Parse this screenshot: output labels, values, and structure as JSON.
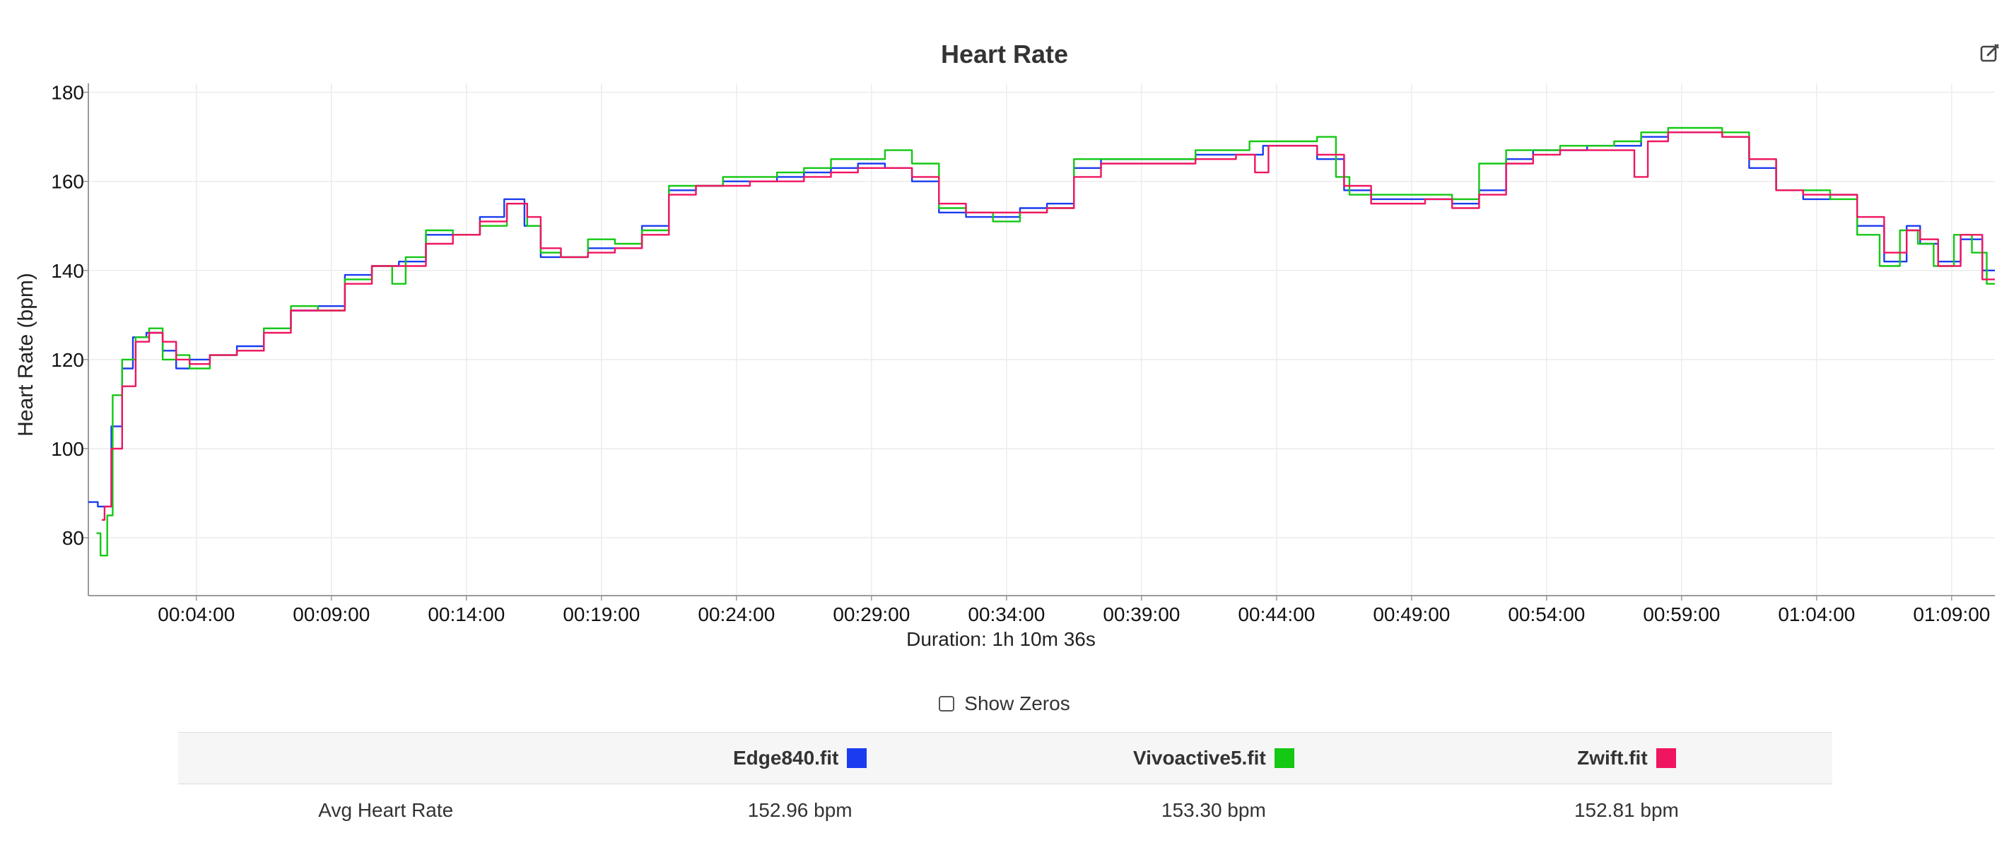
{
  "chart_data": {
    "type": "line",
    "title": "Heart Rate",
    "ylabel": "Heart Rate (bpm)",
    "xlabel": "Duration: 1h 10m 36s",
    "ylim": [
      67,
      182
    ],
    "xlim_seconds": [
      0,
      4236
    ],
    "yticks": [
      80,
      100,
      120,
      140,
      160,
      180
    ],
    "xticks": [
      "00:04:00",
      "00:09:00",
      "00:14:00",
      "00:19:00",
      "00:24:00",
      "00:29:00",
      "00:34:00",
      "00:39:00",
      "00:44:00",
      "00:49:00",
      "00:54:00",
      "00:59:00",
      "01:04:00",
      "01:09:00"
    ],
    "grid": true,
    "series": [
      {
        "name": "Edge840.fit",
        "color": "#1a3cf0",
        "points": [
          [
            "00:00:00",
            88
          ],
          [
            "00:00:42",
            87
          ],
          [
            "00:01:00",
            105
          ],
          [
            "00:01:30",
            118
          ],
          [
            "00:01:48",
            125
          ],
          [
            "00:02:30",
            126
          ],
          [
            "00:03:00",
            122
          ],
          [
            "00:03:30",
            118
          ],
          [
            "00:04:00",
            120
          ],
          [
            "00:05:00",
            121
          ],
          [
            "00:06:00",
            123
          ],
          [
            "00:07:00",
            127
          ],
          [
            "00:08:00",
            131
          ],
          [
            "00:09:00",
            132
          ],
          [
            "00:10:00",
            139
          ],
          [
            "00:11:00",
            141
          ],
          [
            "00:12:00",
            142
          ],
          [
            "00:13:00",
            148
          ],
          [
            "00:14:00",
            148
          ],
          [
            "00:15:00",
            152
          ],
          [
            "00:15:48",
            156
          ],
          [
            "00:16:30",
            150
          ],
          [
            "00:17:00",
            143
          ],
          [
            "00:18:00",
            143
          ],
          [
            "00:19:00",
            145
          ],
          [
            "00:20:00",
            145
          ],
          [
            "00:21:00",
            150
          ],
          [
            "00:22:00",
            158
          ],
          [
            "00:23:00",
            159
          ],
          [
            "00:24:00",
            160
          ],
          [
            "00:25:00",
            160
          ],
          [
            "00:26:00",
            161
          ],
          [
            "00:27:00",
            162
          ],
          [
            "00:28:00",
            163
          ],
          [
            "00:29:00",
            164
          ],
          [
            "00:30:00",
            163
          ],
          [
            "00:31:00",
            160
          ],
          [
            "00:32:00",
            153
          ],
          [
            "00:33:00",
            152
          ],
          [
            "00:34:00",
            152
          ],
          [
            "00:35:00",
            154
          ],
          [
            "00:36:00",
            155
          ],
          [
            "00:37:00",
            163
          ],
          [
            "00:38:00",
            165
          ],
          [
            "00:40:00",
            165
          ],
          [
            "00:42:00",
            166
          ],
          [
            "00:43:00",
            166
          ],
          [
            "00:44:00",
            168
          ],
          [
            "00:45:00",
            168
          ],
          [
            "00:46:00",
            165
          ],
          [
            "00:47:00",
            158
          ],
          [
            "00:48:00",
            156
          ],
          [
            "00:49:00",
            156
          ],
          [
            "00:50:00",
            156
          ],
          [
            "00:51:00",
            155
          ],
          [
            "00:52:00",
            158
          ],
          [
            "00:53:00",
            165
          ],
          [
            "00:54:00",
            167
          ],
          [
            "00:55:00",
            167
          ],
          [
            "00:56:00",
            168
          ],
          [
            "00:57:00",
            168
          ],
          [
            "00:58:00",
            170
          ],
          [
            "00:59:00",
            171
          ],
          [
            "01:00:00",
            171
          ],
          [
            "01:01:00",
            170
          ],
          [
            "01:02:00",
            163
          ],
          [
            "01:03:00",
            158
          ],
          [
            "01:04:00",
            156
          ],
          [
            "01:05:00",
            157
          ],
          [
            "01:06:00",
            150
          ],
          [
            "01:07:00",
            142
          ],
          [
            "01:07:40",
            150
          ],
          [
            "01:08:00",
            146
          ],
          [
            "01:09:00",
            142
          ],
          [
            "01:09:40",
            147
          ],
          [
            "01:10:36",
            140
          ]
        ]
      },
      {
        "name": "Vivoactive5.fit",
        "color": "#14c814",
        "points": [
          [
            "00:00:18",
            81
          ],
          [
            "00:00:36",
            76
          ],
          [
            "00:00:48",
            85
          ],
          [
            "00:01:00",
            112
          ],
          [
            "00:01:30",
            120
          ],
          [
            "00:02:00",
            125
          ],
          [
            "00:02:30",
            127
          ],
          [
            "00:03:00",
            120
          ],
          [
            "00:03:30",
            121
          ],
          [
            "00:04:00",
            118
          ],
          [
            "00:05:00",
            121
          ],
          [
            "00:06:00",
            122
          ],
          [
            "00:07:00",
            127
          ],
          [
            "00:08:00",
            132
          ],
          [
            "00:09:00",
            131
          ],
          [
            "00:10:00",
            138
          ],
          [
            "00:11:00",
            141
          ],
          [
            "00:11:30",
            137
          ],
          [
            "00:12:00",
            143
          ],
          [
            "00:13:00",
            149
          ],
          [
            "00:14:00",
            148
          ],
          [
            "00:15:00",
            150
          ],
          [
            "00:16:00",
            155
          ],
          [
            "00:16:30",
            150
          ],
          [
            "00:17:00",
            144
          ],
          [
            "00:18:00",
            143
          ],
          [
            "00:19:00",
            147
          ],
          [
            "00:20:00",
            146
          ],
          [
            "00:21:00",
            149
          ],
          [
            "00:22:00",
            159
          ],
          [
            "00:23:00",
            159
          ],
          [
            "00:24:00",
            161
          ],
          [
            "00:25:00",
            161
          ],
          [
            "00:26:00",
            162
          ],
          [
            "00:27:00",
            163
          ],
          [
            "00:28:00",
            165
          ],
          [
            "00:29:00",
            165
          ],
          [
            "00:30:00",
            167
          ],
          [
            "00:31:00",
            164
          ],
          [
            "00:32:00",
            154
          ],
          [
            "00:33:00",
            153
          ],
          [
            "00:34:00",
            151
          ],
          [
            "00:35:00",
            153
          ],
          [
            "00:36:00",
            154
          ],
          [
            "00:37:00",
            165
          ],
          [
            "00:38:00",
            165
          ],
          [
            "00:40:00",
            165
          ],
          [
            "00:42:00",
            167
          ],
          [
            "00:44:00",
            169
          ],
          [
            "00:45:00",
            169
          ],
          [
            "00:46:00",
            170
          ],
          [
            "00:46:24",
            161
          ],
          [
            "00:47:00",
            157
          ],
          [
            "00:48:00",
            157
          ],
          [
            "00:49:00",
            157
          ],
          [
            "00:50:00",
            157
          ],
          [
            "00:51:00",
            156
          ],
          [
            "00:52:00",
            164
          ],
          [
            "00:53:00",
            167
          ],
          [
            "00:54:00",
            167
          ],
          [
            "00:55:00",
            168
          ],
          [
            "00:56:00",
            168
          ],
          [
            "00:57:00",
            169
          ],
          [
            "00:58:00",
            171
          ],
          [
            "00:59:00",
            172
          ],
          [
            "01:00:00",
            172
          ],
          [
            "01:01:00",
            171
          ],
          [
            "01:02:00",
            165
          ],
          [
            "01:03:00",
            158
          ],
          [
            "01:04:00",
            158
          ],
          [
            "01:05:00",
            156
          ],
          [
            "01:06:00",
            148
          ],
          [
            "01:06:40",
            141
          ],
          [
            "01:07:30",
            149
          ],
          [
            "01:08:00",
            146
          ],
          [
            "01:08:40",
            141
          ],
          [
            "01:09:30",
            148
          ],
          [
            "01:10:00",
            144
          ],
          [
            "01:10:36",
            137
          ]
        ]
      },
      {
        "name": "Zwift.fit",
        "color": "#f01560",
        "points": [
          [
            "00:00:30",
            84
          ],
          [
            "00:00:42",
            87
          ],
          [
            "00:01:00",
            100
          ],
          [
            "00:01:30",
            114
          ],
          [
            "00:02:00",
            124
          ],
          [
            "00:02:30",
            126
          ],
          [
            "00:03:00",
            124
          ],
          [
            "00:03:30",
            120
          ],
          [
            "00:04:00",
            119
          ],
          [
            "00:05:00",
            121
          ],
          [
            "00:06:00",
            122
          ],
          [
            "00:07:00",
            126
          ],
          [
            "00:08:00",
            131
          ],
          [
            "00:09:00",
            131
          ],
          [
            "00:10:00",
            137
          ],
          [
            "00:11:00",
            141
          ],
          [
            "00:12:00",
            141
          ],
          [
            "00:13:00",
            146
          ],
          [
            "00:14:00",
            148
          ],
          [
            "00:15:00",
            151
          ],
          [
            "00:16:00",
            155
          ],
          [
            "00:16:30",
            152
          ],
          [
            "00:17:00",
            145
          ],
          [
            "00:18:00",
            143
          ],
          [
            "00:19:00",
            144
          ],
          [
            "00:20:00",
            145
          ],
          [
            "00:21:00",
            148
          ],
          [
            "00:22:00",
            157
          ],
          [
            "00:23:00",
            159
          ],
          [
            "00:24:00",
            159
          ],
          [
            "00:25:00",
            160
          ],
          [
            "00:26:00",
            160
          ],
          [
            "00:27:00",
            161
          ],
          [
            "00:28:00",
            162
          ],
          [
            "00:29:00",
            163
          ],
          [
            "00:30:00",
            163
          ],
          [
            "00:31:00",
            161
          ],
          [
            "00:32:00",
            155
          ],
          [
            "00:33:00",
            153
          ],
          [
            "00:34:00",
            153
          ],
          [
            "00:35:00",
            153
          ],
          [
            "00:36:00",
            154
          ],
          [
            "00:37:00",
            161
          ],
          [
            "00:38:00",
            164
          ],
          [
            "00:40:00",
            164
          ],
          [
            "00:42:00",
            165
          ],
          [
            "00:43:00",
            166
          ],
          [
            "00:43:24",
            162
          ],
          [
            "00:44:00",
            168
          ],
          [
            "00:45:00",
            168
          ],
          [
            "00:46:00",
            166
          ],
          [
            "00:47:00",
            159
          ],
          [
            "00:48:00",
            155
          ],
          [
            "00:49:00",
            155
          ],
          [
            "00:50:00",
            156
          ],
          [
            "00:51:00",
            154
          ],
          [
            "00:52:00",
            157
          ],
          [
            "00:53:00",
            164
          ],
          [
            "00:54:00",
            166
          ],
          [
            "00:55:00",
            167
          ],
          [
            "00:56:00",
            167
          ],
          [
            "00:57:00",
            167
          ],
          [
            "00:57:30",
            161
          ],
          [
            "00:58:00",
            169
          ],
          [
            "00:59:00",
            171
          ],
          [
            "01:00:00",
            171
          ],
          [
            "01:01:00",
            170
          ],
          [
            "01:02:00",
            165
          ],
          [
            "01:03:00",
            158
          ],
          [
            "01:04:00",
            157
          ],
          [
            "01:05:00",
            157
          ],
          [
            "01:06:00",
            152
          ],
          [
            "01:07:00",
            144
          ],
          [
            "01:07:40",
            149
          ],
          [
            "01:08:00",
            147
          ],
          [
            "01:09:00",
            141
          ],
          [
            "01:09:40",
            148
          ],
          [
            "01:10:36",
            138
          ]
        ]
      }
    ]
  },
  "header": {
    "title": "Heart Rate",
    "edit_icon": "edit-icon"
  },
  "controls": {
    "show_zeros_label": "Show Zeros",
    "show_zeros_checked": false
  },
  "table": {
    "headers": [
      "",
      "Edge840.fit",
      "Vivoactive5.fit",
      "Zwift.fit"
    ],
    "header_colors": [
      "",
      "#1a3cf0",
      "#14c814",
      "#f01560"
    ],
    "rows": [
      {
        "label": "Avg Heart Rate",
        "values": [
          "152.96 bpm",
          "153.30 bpm",
          "152.81 bpm"
        ]
      }
    ]
  }
}
